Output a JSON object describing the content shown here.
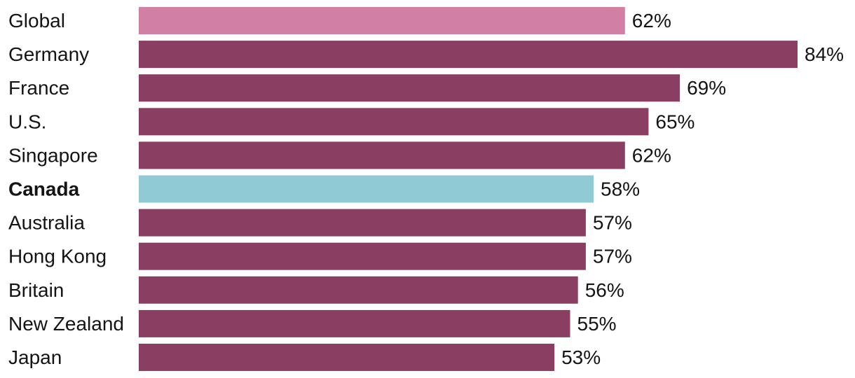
{
  "chart_data": {
    "type": "bar",
    "orientation": "horizontal",
    "title": "",
    "xlabel": "",
    "ylabel": "",
    "categories": [
      "Global",
      "Germany",
      "France",
      "U.S.",
      "Singapore",
      "Canada",
      "Australia",
      "Hong Kong",
      "Britain",
      "New Zealand",
      "Japan"
    ],
    "values": [
      62,
      84,
      69,
      65,
      62,
      58,
      57,
      57,
      56,
      55,
      53
    ],
    "value_labels": [
      "62%",
      "84%",
      "69%",
      "65%",
      "62%",
      "58%",
      "57%",
      "57%",
      "56%",
      "55%",
      "53%"
    ],
    "unit": "%",
    "xlim": [
      0,
      84
    ],
    "grid": false,
    "highlight": {
      "Global": "#d17fa2",
      "Canada": "#90cad4"
    },
    "bold_categories": [
      "Canada"
    ],
    "default_color": "#8a3e62"
  }
}
